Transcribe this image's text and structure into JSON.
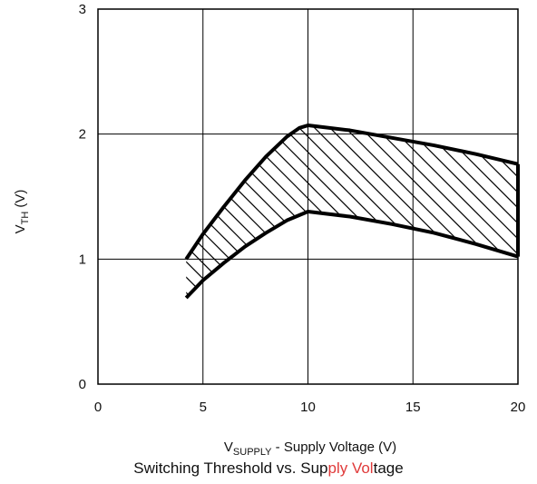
{
  "chart_data": {
    "type": "area",
    "xlabel_main": "V",
    "xlabel_sub": "SUPPLY",
    "xlabel_rest": " - Supply Voltage (V)",
    "ylabel_main": "V",
    "ylabel_sub": "TH",
    "ylabel_rest": " (V)",
    "xlim": [
      0,
      20
    ],
    "ylim": [
      0,
      3
    ],
    "xticks": [
      "0",
      "5",
      "10",
      "15",
      "20"
    ],
    "yticks": [
      "0",
      "1",
      "2",
      "3"
    ],
    "grid": true,
    "hatch": "diagonal",
    "series": [
      {
        "x": [
          4.2,
          5,
          6,
          7,
          8,
          9,
          9.6,
          10,
          12,
          14,
          16,
          18,
          20
        ],
        "values": [
          1.0,
          1.2,
          1.42,
          1.63,
          1.82,
          1.98,
          2.05,
          2.07,
          2.03,
          1.97,
          1.91,
          1.84,
          1.76
        ]
      },
      {
        "x": [
          4.2,
          5,
          6,
          7,
          8,
          9,
          10,
          12,
          14,
          16,
          18,
          20
        ],
        "values": [
          0.69,
          0.83,
          0.97,
          1.1,
          1.21,
          1.31,
          1.38,
          1.34,
          1.28,
          1.21,
          1.12,
          1.02
        ]
      }
    ]
  },
  "caption": {
    "part1": "Switching Threshold ",
    "part2": "vs. Sup",
    "part3": "ply Vol",
    "part4": "tage"
  }
}
